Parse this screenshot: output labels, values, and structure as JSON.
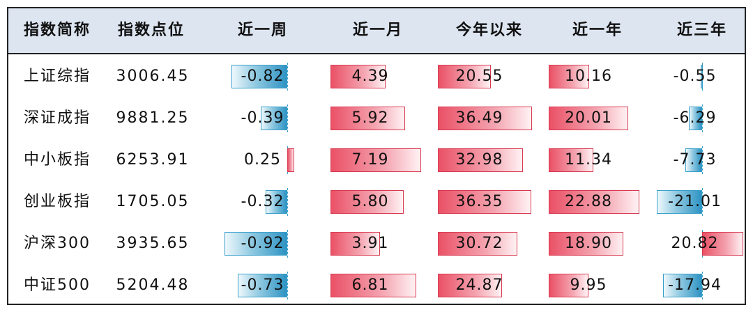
{
  "headers": [
    "指数简称",
    "指数点位",
    "近一周",
    "近一月",
    "今年以来",
    "近一年",
    "近三年"
  ],
  "rows": [
    {
      "name": "上证综指",
      "points": "3006.45",
      "values": [
        {
          "text": "-0.82",
          "v": -0.82
        },
        {
          "text": "4.39",
          "v": 4.39
        },
        {
          "text": "20.55",
          "v": 20.55
        },
        {
          "text": "10.16",
          "v": 10.16
        },
        {
          "text": "-0.55",
          "v": -0.55
        }
      ]
    },
    {
      "name": "深证成指",
      "points": "9881.25",
      "values": [
        {
          "text": "-0.39",
          "v": -0.39
        },
        {
          "text": "5.92",
          "v": 5.92
        },
        {
          "text": "36.49",
          "v": 36.49
        },
        {
          "text": "20.01",
          "v": 20.01
        },
        {
          "text": "-6.29",
          "v": -6.29
        }
      ]
    },
    {
      "name": "中小板指",
      "points": "6253.91",
      "values": [
        {
          "text": "0.25",
          "v": 0.25
        },
        {
          "text": "7.19",
          "v": 7.19
        },
        {
          "text": "32.98",
          "v": 32.98
        },
        {
          "text": "11.34",
          "v": 11.34
        },
        {
          "text": "-7.73",
          "v": -7.73
        }
      ]
    },
    {
      "name": "创业板指",
      "points": "1705.05",
      "values": [
        {
          "text": "-0.32",
          "v": -0.32
        },
        {
          "text": "5.80",
          "v": 5.8
        },
        {
          "text": "36.35",
          "v": 36.35
        },
        {
          "text": "22.88",
          "v": 22.88
        },
        {
          "text": "-21.01",
          "v": -21.01
        }
      ]
    },
    {
      "name": "沪深300",
      "points": "3935.65",
      "values": [
        {
          "text": "-0.92",
          "v": -0.92
        },
        {
          "text": "3.91",
          "v": 3.91
        },
        {
          "text": "30.72",
          "v": 30.72
        },
        {
          "text": "18.90",
          "v": 18.9
        },
        {
          "text": "20.82",
          "v": 20.82
        }
      ]
    },
    {
      "name": "中证500",
      "points": "5204.48",
      "values": [
        {
          "text": "-0.73",
          "v": -0.73
        },
        {
          "text": "6.81",
          "v": 6.81
        },
        {
          "text": "24.87",
          "v": 24.87
        },
        {
          "text": "9.95",
          "v": 9.95
        },
        {
          "text": "-17.94",
          "v": -17.94
        }
      ]
    }
  ],
  "colors": {
    "positive_bar": "#ea5166",
    "negative_bar": "#2e93c3",
    "header_bg": "#dde5f1"
  }
}
